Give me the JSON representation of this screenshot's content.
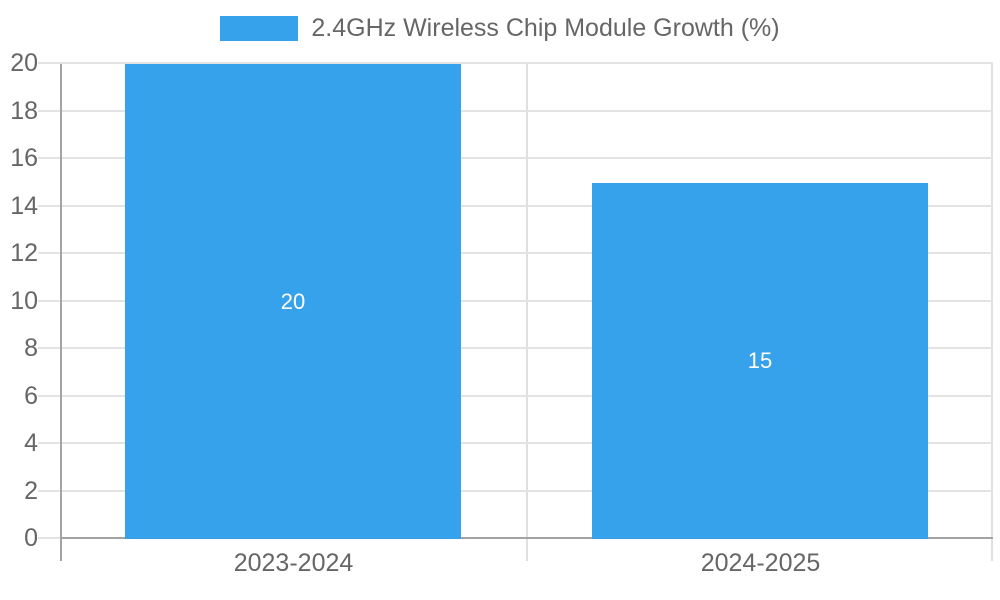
{
  "chart_data": {
    "type": "bar",
    "title": "",
    "legend_position": "top",
    "categories": [
      "2023-2024",
      "2024-2025"
    ],
    "series": [
      {
        "name": "2.4GHz Wireless Chip Module Growth (%)",
        "color": "#36A2EB",
        "values": [
          20,
          15
        ]
      }
    ],
    "value_labels": [
      "20",
      "15"
    ],
    "yticks": [
      0,
      2,
      4,
      6,
      8,
      10,
      12,
      14,
      16,
      18,
      20
    ],
    "ytick_labels": [
      "0",
      "2",
      "4",
      "6",
      "8",
      "10",
      "12",
      "14",
      "16",
      "18",
      "20"
    ],
    "ylim": [
      0,
      20
    ],
    "grid": true,
    "colors": {
      "bar_fill": "#36A2EB",
      "value_label_text": "#ffffff",
      "grid_line": "#e3e3e3",
      "zero_line": "#a3a3a3",
      "axis_line": "#a3a3a3",
      "category_divider_line": "#e0e0e0",
      "tick_text": "#666666",
      "legend_text": "#666666"
    }
  }
}
